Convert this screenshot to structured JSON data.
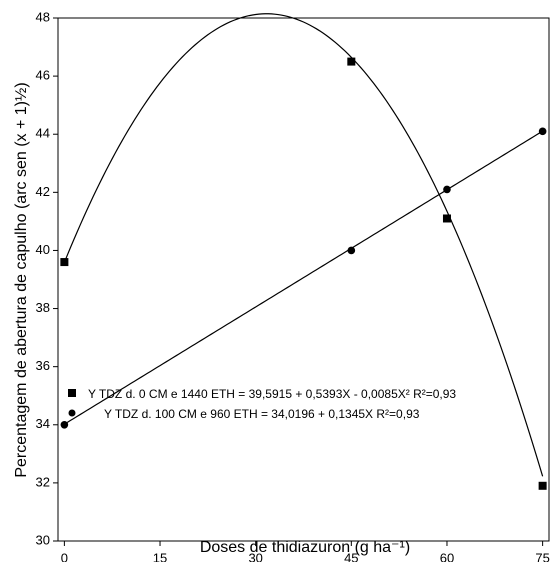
{
  "chart_data": {
    "type": "scatter",
    "x_label": "Doses de thidiazuron (g ha⁻¹)",
    "y_label": "Percentagem de abertura de capulho (arc sen (x + 1)½)",
    "xlim": [
      -1,
      76
    ],
    "xticks": [
      0,
      15,
      30,
      45,
      60,
      75
    ],
    "ylim": [
      30,
      48
    ],
    "yticks": [
      30,
      32,
      34,
      36,
      38,
      40,
      42,
      44,
      46,
      48
    ],
    "series": [
      {
        "name": "Y TDZ  d. 0 CM e 1440 ETH = 39,5915 + 0,5393X - 0,0085X²  R²=0,93",
        "marker": "square",
        "color": "#000000",
        "x": [
          0,
          45,
          60,
          75
        ],
        "values": [
          39.6,
          46.5,
          41.1,
          31.9
        ],
        "fit_coefficients": [
          39.5915,
          0.5393,
          -0.0085
        ]
      },
      {
        "name": "Y TDZ  d. 100 CM e   960 ETH = 34,0196 + 0,1345X  R²=0,93",
        "marker": "circle",
        "color": "#000000",
        "x": [
          0,
          45,
          60,
          75
        ],
        "values": [
          34.0,
          40.0,
          42.1,
          44.1
        ],
        "fit_coefficients": [
          34.0196,
          0.1345
        ]
      }
    ]
  }
}
